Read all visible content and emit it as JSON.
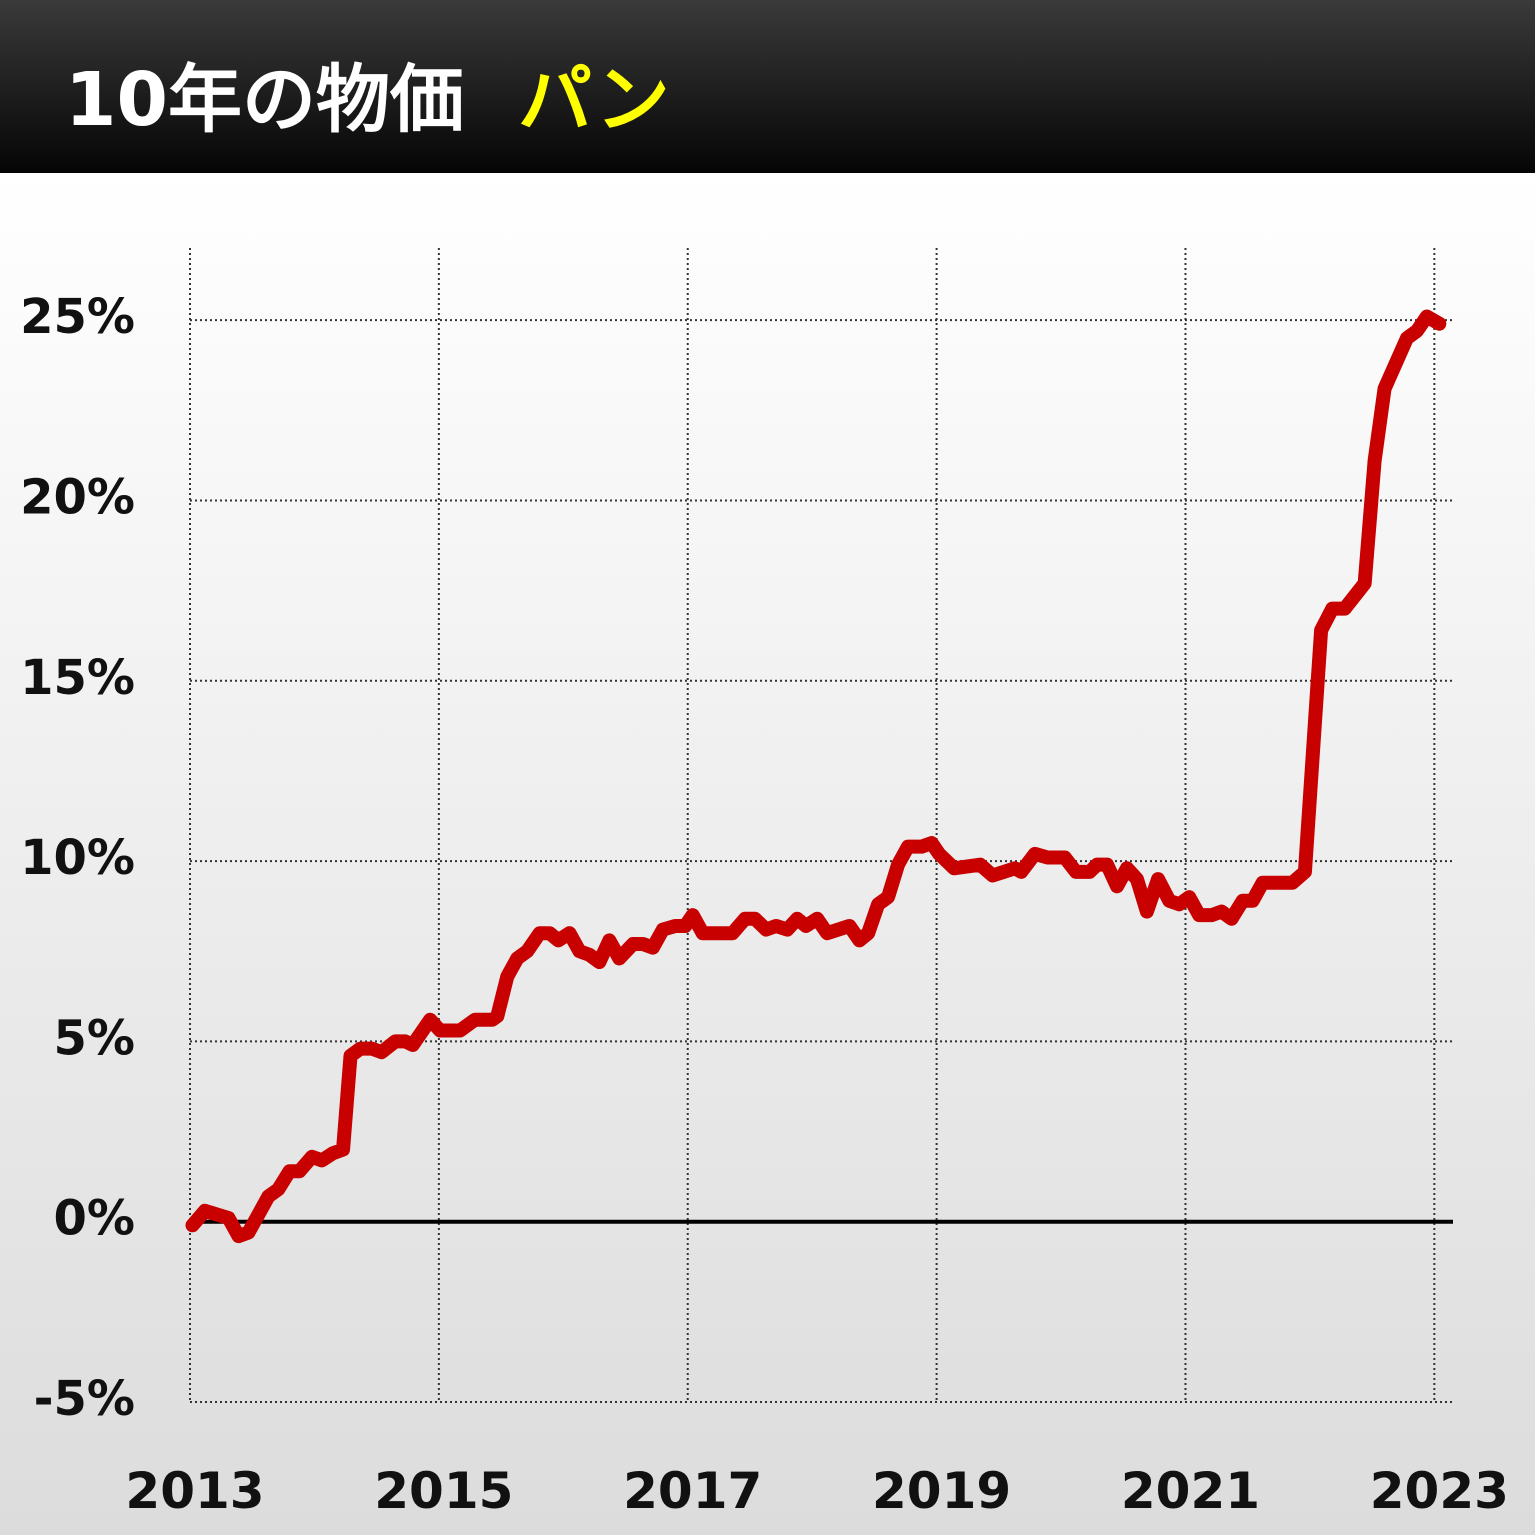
{
  "chart_data": {
    "type": "line",
    "title": "10年の物価",
    "subtitle": "パン",
    "x": [
      2013.02,
      2013.12,
      2013.31,
      2013.39,
      2013.47,
      2013.63,
      2013.71,
      2013.8,
      2013.88,
      2013.98,
      2014.06,
      2014.15,
      2014.23,
      2014.29,
      2014.37,
      2014.46,
      2014.54,
      2014.65,
      2014.73,
      2014.79,
      2014.93,
      2015.01,
      2015.17,
      2015.29,
      2015.43,
      2015.47,
      2015.55,
      2015.63,
      2015.71,
      2015.81,
      2015.89,
      2015.96,
      2016.05,
      2016.13,
      2016.21,
      2016.29,
      2016.37,
      2016.45,
      2016.56,
      2016.64,
      2016.72,
      2016.8,
      2016.9,
      2016.98,
      2017.04,
      2017.12,
      2017.36,
      2017.46,
      2017.54,
      2017.63,
      2017.71,
      2017.8,
      2017.88,
      2017.95,
      2018.04,
      2018.12,
      2018.3,
      2018.38,
      2018.45,
      2018.53,
      2018.61,
      2018.69,
      2018.77,
      2018.88,
      2018.96,
      2019.02,
      2019.14,
      2019.35,
      2019.45,
      2019.63,
      2019.68,
      2019.79,
      2019.89,
      2020.03,
      2020.12,
      2020.23,
      2020.29,
      2020.37,
      2020.45,
      2020.53,
      2020.61,
      2020.69,
      2020.78,
      2020.87,
      2020.95,
      2021.03,
      2021.11,
      2021.21,
      2021.29,
      2021.37,
      2021.46,
      2021.54,
      2021.62,
      2021.86,
      2021.96,
      2022.09,
      2022.18,
      2022.28,
      2022.44,
      2022.52,
      2022.6,
      2022.78,
      2022.86,
      2022.94,
      2023.04
    ],
    "series": [
      {
        "name": "パン",
        "color": "#c80000",
        "values": [
          -0.1,
          0.3,
          0.1,
          -0.4,
          -0.3,
          0.7,
          0.9,
          1.4,
          1.4,
          1.8,
          1.7,
          1.9,
          2.0,
          4.6,
          4.8,
          4.8,
          4.7,
          5.0,
          5.0,
          4.9,
          5.6,
          5.3,
          5.3,
          5.6,
          5.6,
          5.7,
          6.8,
          7.3,
          7.5,
          8.0,
          8.0,
          7.8,
          8.0,
          7.5,
          7.4,
          7.2,
          7.8,
          7.3,
          7.7,
          7.7,
          7.6,
          8.1,
          8.2,
          8.2,
          8.5,
          8.0,
          8.0,
          8.4,
          8.4,
          8.1,
          8.2,
          8.1,
          8.4,
          8.2,
          8.4,
          8.0,
          8.2,
          7.8,
          8.0,
          8.8,
          9.0,
          9.9,
          10.4,
          10.4,
          10.5,
          10.2,
          9.8,
          9.9,
          9.6,
          9.8,
          9.7,
          10.2,
          10.1,
          10.1,
          9.7,
          9.7,
          9.9,
          9.9,
          9.3,
          9.8,
          9.5,
          8.6,
          9.5,
          8.9,
          8.8,
          9.0,
          8.5,
          8.5,
          8.6,
          8.4,
          8.9,
          8.9,
          9.4,
          9.4,
          9.7,
          16.4,
          17.0,
          17.0,
          17.7,
          21.1,
          23.1,
          24.5,
          24.7,
          25.1,
          24.9
        ]
      }
    ],
    "xlim": [
      2013,
      2023.15
    ],
    "xticks": [
      2013,
      2015,
      2017,
      2019,
      2021,
      2023
    ],
    "ylim": [
      -5,
      27
    ],
    "yticks": [
      {
        "value": -5,
        "label": "-5%"
      },
      {
        "value": 0,
        "label": "0%"
      },
      {
        "value": 5,
        "label": "5%"
      },
      {
        "value": 10,
        "label": "10%"
      },
      {
        "value": 15,
        "label": "15%"
      },
      {
        "value": 20,
        "label": "20%"
      },
      {
        "value": 25,
        "label": "25%"
      }
    ],
    "grid": true
  }
}
